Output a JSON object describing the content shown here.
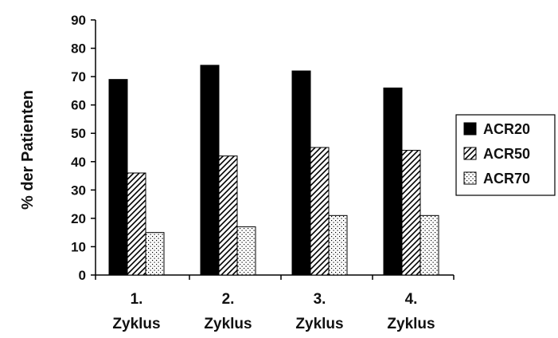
{
  "chart_data": {
    "type": "bar",
    "title": "",
    "xlabel": "",
    "ylabel": "% der Patienten",
    "ylim": [
      0,
      90
    ],
    "yticks": [
      0,
      10,
      20,
      30,
      40,
      50,
      60,
      70,
      80,
      90
    ],
    "categories": [
      [
        "1.",
        "Zyklus"
      ],
      [
        "2.",
        "Zyklus"
      ],
      [
        "3.",
        "Zyklus"
      ],
      [
        "4.",
        "Zyklus"
      ]
    ],
    "series": [
      {
        "name": "ACR20",
        "values": [
          69,
          74,
          72,
          66
        ],
        "pattern": "solid",
        "color": "#000000"
      },
      {
        "name": "ACR50",
        "values": [
          36,
          42,
          45,
          44
        ],
        "pattern": "hatch",
        "color": "#000000"
      },
      {
        "name": "ACR70",
        "values": [
          15,
          17,
          21,
          21
        ],
        "pattern": "dots",
        "color": "#000000"
      }
    ],
    "legend": "right",
    "grid": false
  }
}
